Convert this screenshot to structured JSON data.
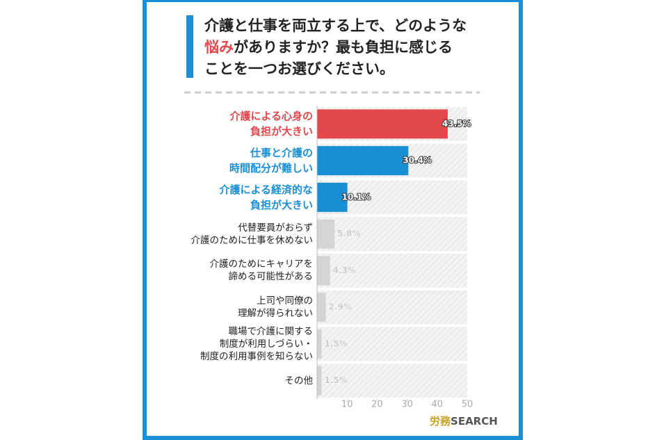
{
  "title": {
    "line1": "介護と仕事を両立する上で、どのような",
    "highlight": "悩み",
    "line2": "がありますか？最も負担に感じる",
    "line3": "ことを一つお選びください。"
  },
  "logo": {
    "mark": "労務",
    "word": "SEARCH"
  },
  "chart_data": {
    "type": "barh",
    "categories": [
      "介護による心身の\n負担が大きい",
      "仕事と介護の\n時間配分が難しい",
      "介護による経済的な\n負担が大きい",
      "代替要員がおらず\n介護のために仕事を休めない",
      "介護のためにキャリアを\n諦める可能性がある",
      "上司や同僚の\n理解が得られない",
      "職場で介護に関する\n制度が利用しづらい・\n制度の利用事例を知らない",
      "その他"
    ],
    "values": [
      43.5,
      30.4,
      10.1,
      5.8,
      4.3,
      2.9,
      1.5,
      1.5
    ],
    "value_labels": [
      "43.5%",
      "30.4%",
      "10.1%",
      "5.8%",
      "4.3%",
      "2.9%",
      "1.5%",
      "1.5%"
    ],
    "colors": [
      "#e2474b",
      "#1a8fd6",
      "#1a8fd6",
      "#d4d4d4",
      "#d4d4d4",
      "#d4d4d4",
      "#d4d4d4",
      "#d4d4d4"
    ],
    "label_colors": [
      "#e2474b",
      "#1a8fd6",
      "#1a8fd6",
      "#222222",
      "#222222",
      "#222222",
      "#222222",
      "#222222"
    ],
    "xlim": [
      0,
      50
    ],
    "xticks": [
      10,
      20,
      30,
      40,
      50
    ]
  }
}
